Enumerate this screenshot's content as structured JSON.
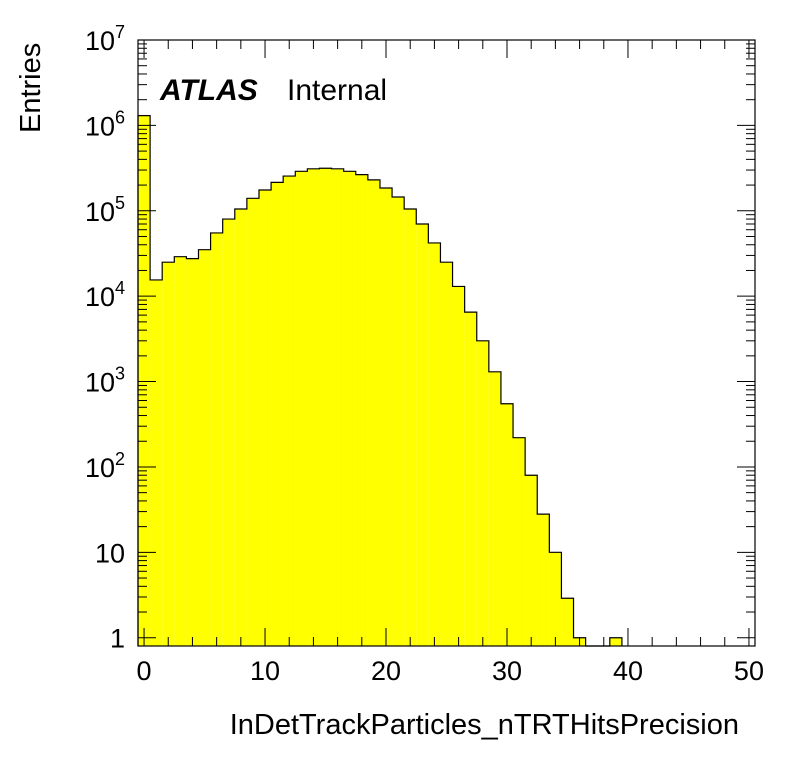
{
  "chart_data": {
    "type": "bar",
    "histogram": true,
    "xlabel": "InDetTrackParticles_nTRTHitsPrecision",
    "ylabel": "Entries",
    "yscale": "log",
    "xlim": [
      -0.5,
      50.5
    ],
    "ylim": [
      0.8,
      10000000
    ],
    "bin_width": 1,
    "x_ticks": [
      "0",
      "10",
      "20",
      "30",
      "40",
      "50"
    ],
    "x_tick_values": [
      0,
      10,
      20,
      30,
      40,
      50
    ],
    "y_ticks": [
      "1",
      "10",
      "10^2",
      "10^3",
      "10^4",
      "10^5",
      "10^6",
      "10^7"
    ],
    "y_tick_values": [
      1,
      10,
      100,
      1000,
      10000,
      100000,
      1000000,
      10000000
    ],
    "fill_color": "#ffff00",
    "line_color": "#000000",
    "bins_low_edges": [
      -0.5,
      0.5,
      1.5,
      2.5,
      3.5,
      4.5,
      5.5,
      6.5,
      7.5,
      8.5,
      9.5,
      10.5,
      11.5,
      12.5,
      13.5,
      14.5,
      15.5,
      16.5,
      17.5,
      18.5,
      19.5,
      20.5,
      21.5,
      22.5,
      23.5,
      24.5,
      25.5,
      26.5,
      27.5,
      28.5,
      29.5,
      30.5,
      31.5,
      32.5,
      33.5,
      34.5,
      35.5,
      36.5,
      37.5,
      38.5
    ],
    "values": [
      1300000,
      15500,
      25000,
      29000,
      27500,
      35000,
      55000,
      80000,
      105000,
      140000,
      175000,
      215000,
      255000,
      290000,
      310000,
      315000,
      310000,
      290000,
      265000,
      230000,
      185000,
      145000,
      105000,
      70000,
      42000,
      25000,
      13000,
      6500,
      3000,
      1300,
      550,
      220,
      80,
      28,
      10,
      2.9,
      1,
      0,
      0,
      1
    ]
  },
  "labels": {
    "atlas": "ATLAS",
    "internal": "Internal"
  }
}
